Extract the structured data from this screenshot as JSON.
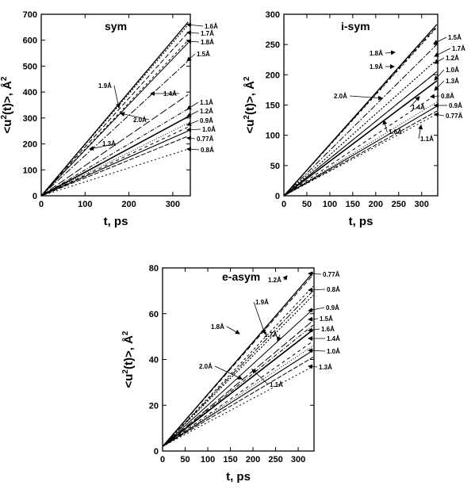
{
  "chart_data": [
    {
      "type": "line",
      "title": "sym",
      "xlabel": "t,  ps",
      "ylabel_main": "<u",
      "ylabel_sup": "2",
      "ylabel_rest": "(t)>,  Å",
      "ylabel_unit_sup": "2",
      "xlim": [
        0,
        340
      ],
      "ylim": [
        0,
        700
      ],
      "xticks": [
        0,
        100,
        200,
        300
      ],
      "yticks": [
        0,
        100,
        200,
        300,
        400,
        500,
        600,
        700
      ],
      "x": [
        0,
        335
      ],
      "series": [
        {
          "name": "1.6Å",
          "values": [
            0,
            670
          ]
        },
        {
          "name": "1.7Å",
          "values": [
            0,
            630
          ]
        },
        {
          "name": "1.8Å",
          "values": [
            0,
            600
          ]
        },
        {
          "name": "1.5Å",
          "values": [
            0,
            520
          ]
        },
        {
          "name": "1.9Å",
          "values": [
            0,
            660
          ]
        },
        {
          "name": "2.0Å",
          "values": [
            0,
            590
          ]
        },
        {
          "name": "1.4Å",
          "values": [
            0,
            390
          ]
        },
        {
          "name": "1.1Å",
          "values": [
            0,
            335
          ]
        },
        {
          "name": "1.2Å",
          "values": [
            0,
            305
          ]
        },
        {
          "name": "0.9Å",
          "values": [
            0,
            265
          ]
        },
        {
          "name": "1.3Å",
          "values": [
            0,
            280
          ]
        },
        {
          "name": "1.0Å",
          "values": [
            0,
            250
          ]
        },
        {
          "name": "0.77Å",
          "values": [
            0,
            230
          ]
        },
        {
          "name": "0.8Å",
          "values": [
            0,
            180
          ]
        }
      ]
    },
    {
      "type": "line",
      "title": "i-sym",
      "xlabel": "t,  ps",
      "ylabel_main": "<u",
      "ylabel_sup": "2",
      "ylabel_rest": "(t)>,  Å",
      "ylabel_unit_sup": "2",
      "xlim": [
        0,
        335
      ],
      "ylim": [
        0,
        300
      ],
      "xticks": [
        0,
        50,
        100,
        150,
        200,
        250,
        300
      ],
      "yticks": [
        0,
        50,
        100,
        150,
        200,
        250,
        300
      ],
      "x": [
        0,
        333
      ],
      "series": [
        {
          "name": "1.5Å",
          "values": [
            0,
            283
          ]
        },
        {
          "name": "1.8Å",
          "values": [
            0,
            280
          ]
        },
        {
          "name": "1.9Å",
          "values": [
            0,
            278
          ]
        },
        {
          "name": "1.7Å",
          "values": [
            0,
            250
          ]
        },
        {
          "name": "1.2Å",
          "values": [
            0,
            225
          ]
        },
        {
          "name": "2.0Å",
          "values": [
            0,
            205
          ]
        },
        {
          "name": "1.0Å",
          "values": [
            0,
            205
          ]
        },
        {
          "name": "1.3Å",
          "values": [
            0,
            190
          ]
        },
        {
          "name": "1.4Å",
          "values": [
            0,
            190
          ]
        },
        {
          "name": "0.8Å",
          "values": [
            0,
            168
          ]
        },
        {
          "name": "0.9Å",
          "values": [
            0,
            155
          ]
        },
        {
          "name": "0.77Å",
          "values": [
            0,
            148
          ]
        },
        {
          "name": "1.6Å",
          "values": [
            0,
            140
          ]
        },
        {
          "name": "1.1Å",
          "values": [
            0,
            135
          ]
        }
      ]
    },
    {
      "type": "line",
      "title": "e-asym",
      "xlabel": "t,  ps",
      "ylabel_main": "<u",
      "ylabel_sup": "2",
      "ylabel_rest": "(t)>,  Å",
      "ylabel_unit_sup": "2",
      "xlim": [
        0,
        335
      ],
      "ylim": [
        0,
        80
      ],
      "xticks": [
        0,
        50,
        100,
        150,
        200,
        250,
        300
      ],
      "yticks": [
        0,
        20,
        40,
        60,
        80
      ],
      "x": [
        0,
        333
      ],
      "series": [
        {
          "name": "0.77Å",
          "values": [
            2,
            78
          ]
        },
        {
          "name": "1.2Å",
          "values": [
            2,
            77
          ]
        },
        {
          "name": "1.9Å",
          "values": [
            2,
            72
          ]
        },
        {
          "name": "0.8Å",
          "values": [
            2,
            70
          ]
        },
        {
          "name": "1.8Å",
          "values": [
            2,
            68
          ]
        },
        {
          "name": "0.9Å",
          "values": [
            2,
            62
          ]
        },
        {
          "name": "1.5Å",
          "values": [
            2,
            57
          ]
        },
        {
          "name": "1.7Å",
          "values": [
            2,
            55
          ]
        },
        {
          "name": "1.6Å",
          "values": [
            2,
            53
          ]
        },
        {
          "name": "1.4Å",
          "values": [
            2,
            48
          ]
        },
        {
          "name": "2.0Å",
          "values": [
            2,
            46
          ]
        },
        {
          "name": "1.0Å",
          "values": [
            2,
            44
          ]
        },
        {
          "name": "1.1Å",
          "values": [
            2,
            41
          ]
        },
        {
          "name": "1.3Å",
          "values": [
            2,
            37
          ]
        }
      ]
    }
  ]
}
